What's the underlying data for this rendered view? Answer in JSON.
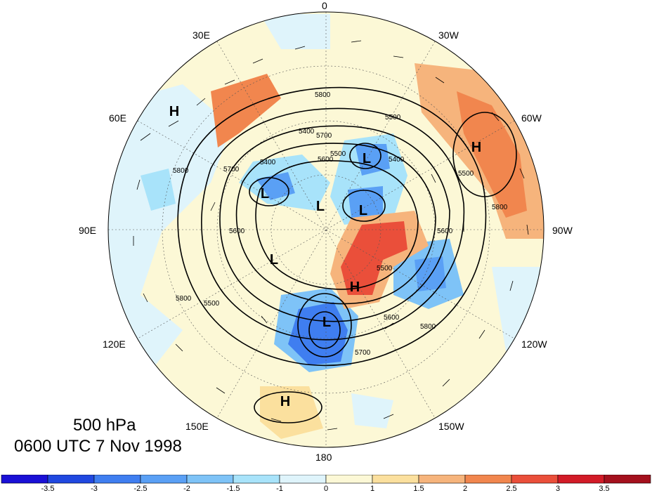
{
  "title": {
    "level": "500 hPa",
    "time": "0600 UTC 7 Nov 1998"
  },
  "longitude_labels": {
    "top": "0",
    "top_right": "30W",
    "right_upper": "60W",
    "right": "90W",
    "right_lower": "120W",
    "bottom_right": "150W",
    "bottom": "180",
    "bottom_left": "150E",
    "left_lower": "120E",
    "left": "90E",
    "left_upper": "60E",
    "top_left": "30E"
  },
  "pressure_centers": [
    {
      "name": "high-1",
      "label": "H"
    },
    {
      "name": "high-2",
      "label": "H"
    },
    {
      "name": "high-3",
      "label": "H"
    },
    {
      "name": "high-4",
      "label": "H"
    },
    {
      "name": "low-1",
      "label": "L"
    },
    {
      "name": "low-2",
      "label": "L"
    },
    {
      "name": "low-3",
      "label": "L"
    },
    {
      "name": "low-4",
      "label": "L"
    },
    {
      "name": "low-5",
      "label": "L"
    },
    {
      "name": "low-6",
      "label": "L"
    }
  ],
  "contour_labels": [
    "5800",
    "5700",
    "5600",
    "5500",
    "5400",
    "5800",
    "5700",
    "5600",
    "5500",
    "5400",
    "5800",
    "5600",
    "5500",
    "5800",
    "5600",
    "5500",
    "5700",
    "5400",
    "5800",
    "5500"
  ],
  "colorbar": {
    "colors": [
      "#1a10d6",
      "#2048e0",
      "#3f7ef0",
      "#5aa0f5",
      "#7ec3f7",
      "#a8e3fa",
      "#dff4fb",
      "#fcf8d6",
      "#fbe09e",
      "#f6b47c",
      "#f1864e",
      "#ea4f3a",
      "#d21b27",
      "#a4101d"
    ],
    "tick_labels": [
      "-3.5",
      "-3",
      "-2.5",
      "-2",
      "-1.5",
      "-1",
      "0",
      "1",
      "1.5",
      "2",
      "2.5",
      "3",
      "3.5"
    ]
  }
}
